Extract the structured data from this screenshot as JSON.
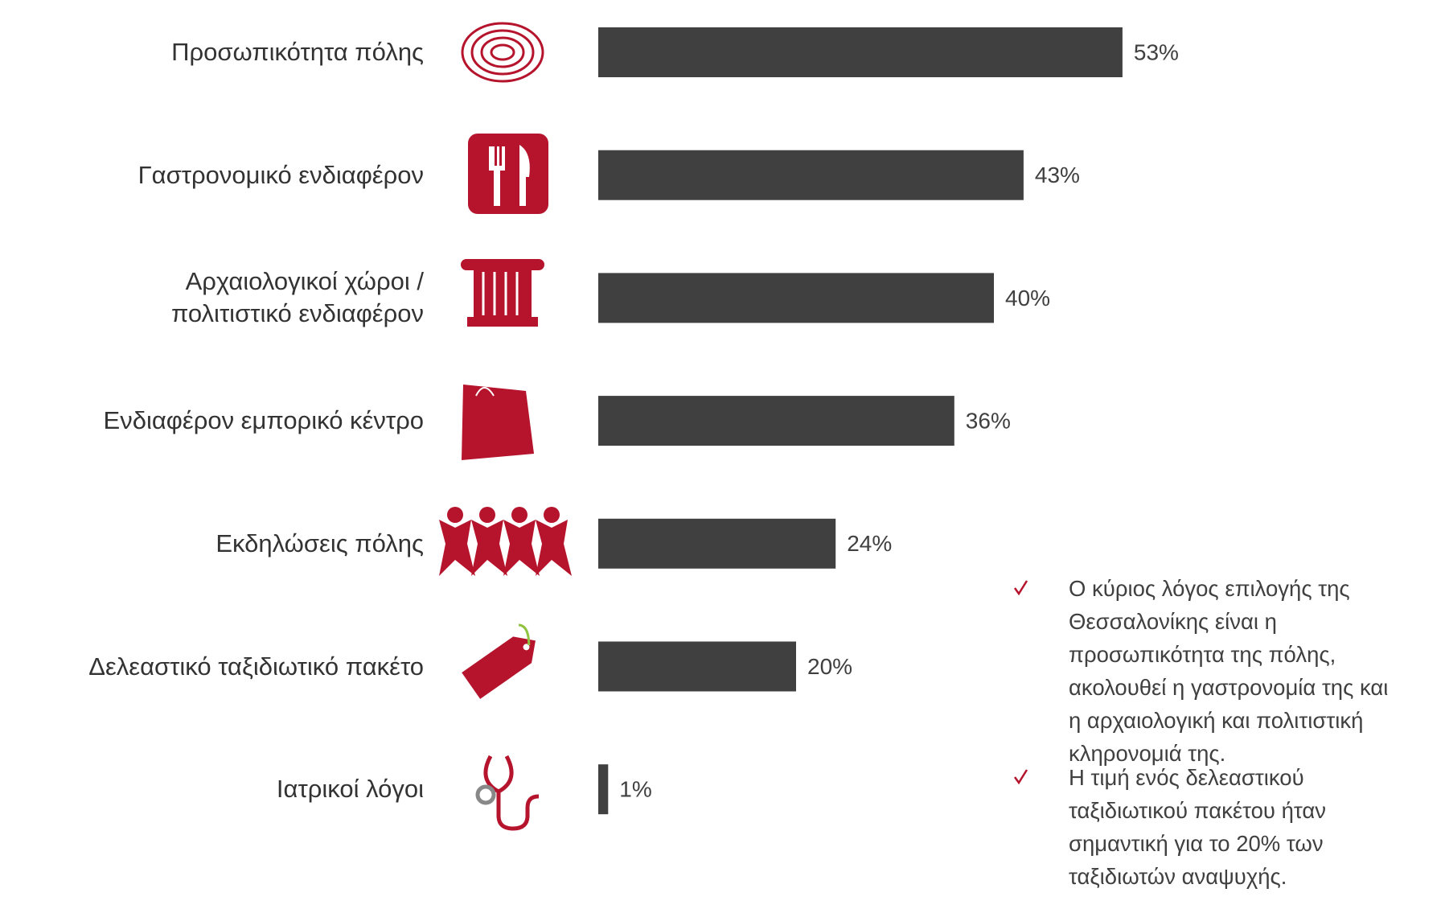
{
  "chart_data": {
    "type": "bar",
    "orientation": "horizontal",
    "categories": [
      "Προσωπικότητα πόλης",
      "Γαστρονομικό ενδιαφέρον",
      "Αρχαιολογικοί χώροι /\nπολιτιστικό ενδιαφέρον",
      "Ενδιαφέρον εμπορικό κέντρο",
      "Εκδηλώσεις πόλης",
      "Δελεαστικό ταξιδιωτικό πακέτο",
      "Ιατρικοί λόγοι"
    ],
    "values": [
      53,
      43,
      40,
      36,
      24,
      20,
      1
    ],
    "value_labels": [
      "53%",
      "43%",
      "40%",
      "36%",
      "24%",
      "20%",
      "1%"
    ],
    "color": "#404040"
  },
  "bullets": [
    [
      "Ο κύριος λόγος επιλογής της",
      "Θεσσαλονίκης είναι η",
      "προσωπικότητα της πόλης,",
      "ακολουθεί η γαστρονομία της και",
      "η αρχαιολογική και πολιτιστική",
      "κληρονομιά της."
    ],
    [
      "Η  τιμή ενός δελεαστικού",
      "ταξιδιωτικού πακέτου ήταν",
      "σημαντική για το 20% των",
      "ταξιδιωτών αναψυχής."
    ]
  ]
}
